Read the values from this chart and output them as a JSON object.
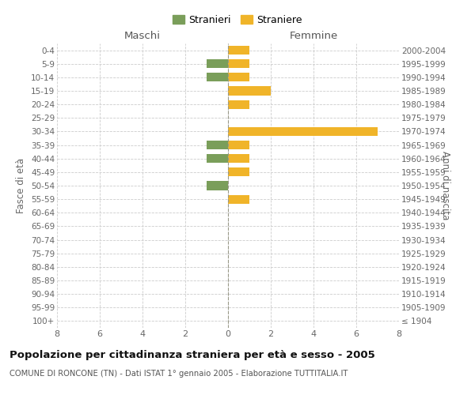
{
  "age_groups": [
    "100+",
    "95-99",
    "90-94",
    "85-89",
    "80-84",
    "75-79",
    "70-74",
    "65-69",
    "60-64",
    "55-59",
    "50-54",
    "45-49",
    "40-44",
    "35-39",
    "30-34",
    "25-29",
    "20-24",
    "15-19",
    "10-14",
    "5-9",
    "0-4"
  ],
  "birth_years": [
    "≤ 1904",
    "1905-1909",
    "1910-1914",
    "1915-1919",
    "1920-1924",
    "1925-1929",
    "1930-1934",
    "1935-1939",
    "1940-1944",
    "1945-1949",
    "1950-1954",
    "1955-1959",
    "1960-1964",
    "1965-1969",
    "1970-1974",
    "1975-1979",
    "1980-1984",
    "1985-1989",
    "1990-1994",
    "1995-1999",
    "2000-2004"
  ],
  "maschi_stranieri": [
    0,
    0,
    0,
    0,
    0,
    0,
    0,
    0,
    0,
    0,
    1,
    0,
    1,
    1,
    0,
    0,
    0,
    0,
    1,
    1,
    0
  ],
  "femmine_straniere": [
    0,
    0,
    0,
    0,
    0,
    0,
    0,
    0,
    0,
    1,
    0,
    1,
    1,
    1,
    7,
    0,
    1,
    2,
    1,
    1,
    1
  ],
  "color_maschi": "#7a9e5a",
  "color_femmine": "#f0b429",
  "xlim": 8,
  "title": "Popolazione per cittadinanza straniera per età e sesso - 2005",
  "subtitle": "COMUNE DI RONCONE (TN) - Dati ISTAT 1° gennaio 2005 - Elaborazione TUTTITALIA.IT",
  "ylabel_left": "Fasce di età",
  "ylabel_right": "Anni di nascita",
  "label_maschi": "Maschi",
  "label_femmine": "Femmine",
  "legend_stranieri": "Stranieri",
  "legend_straniere": "Straniere",
  "background_color": "#ffffff",
  "grid_color": "#cccccc",
  "bar_height": 0.65
}
